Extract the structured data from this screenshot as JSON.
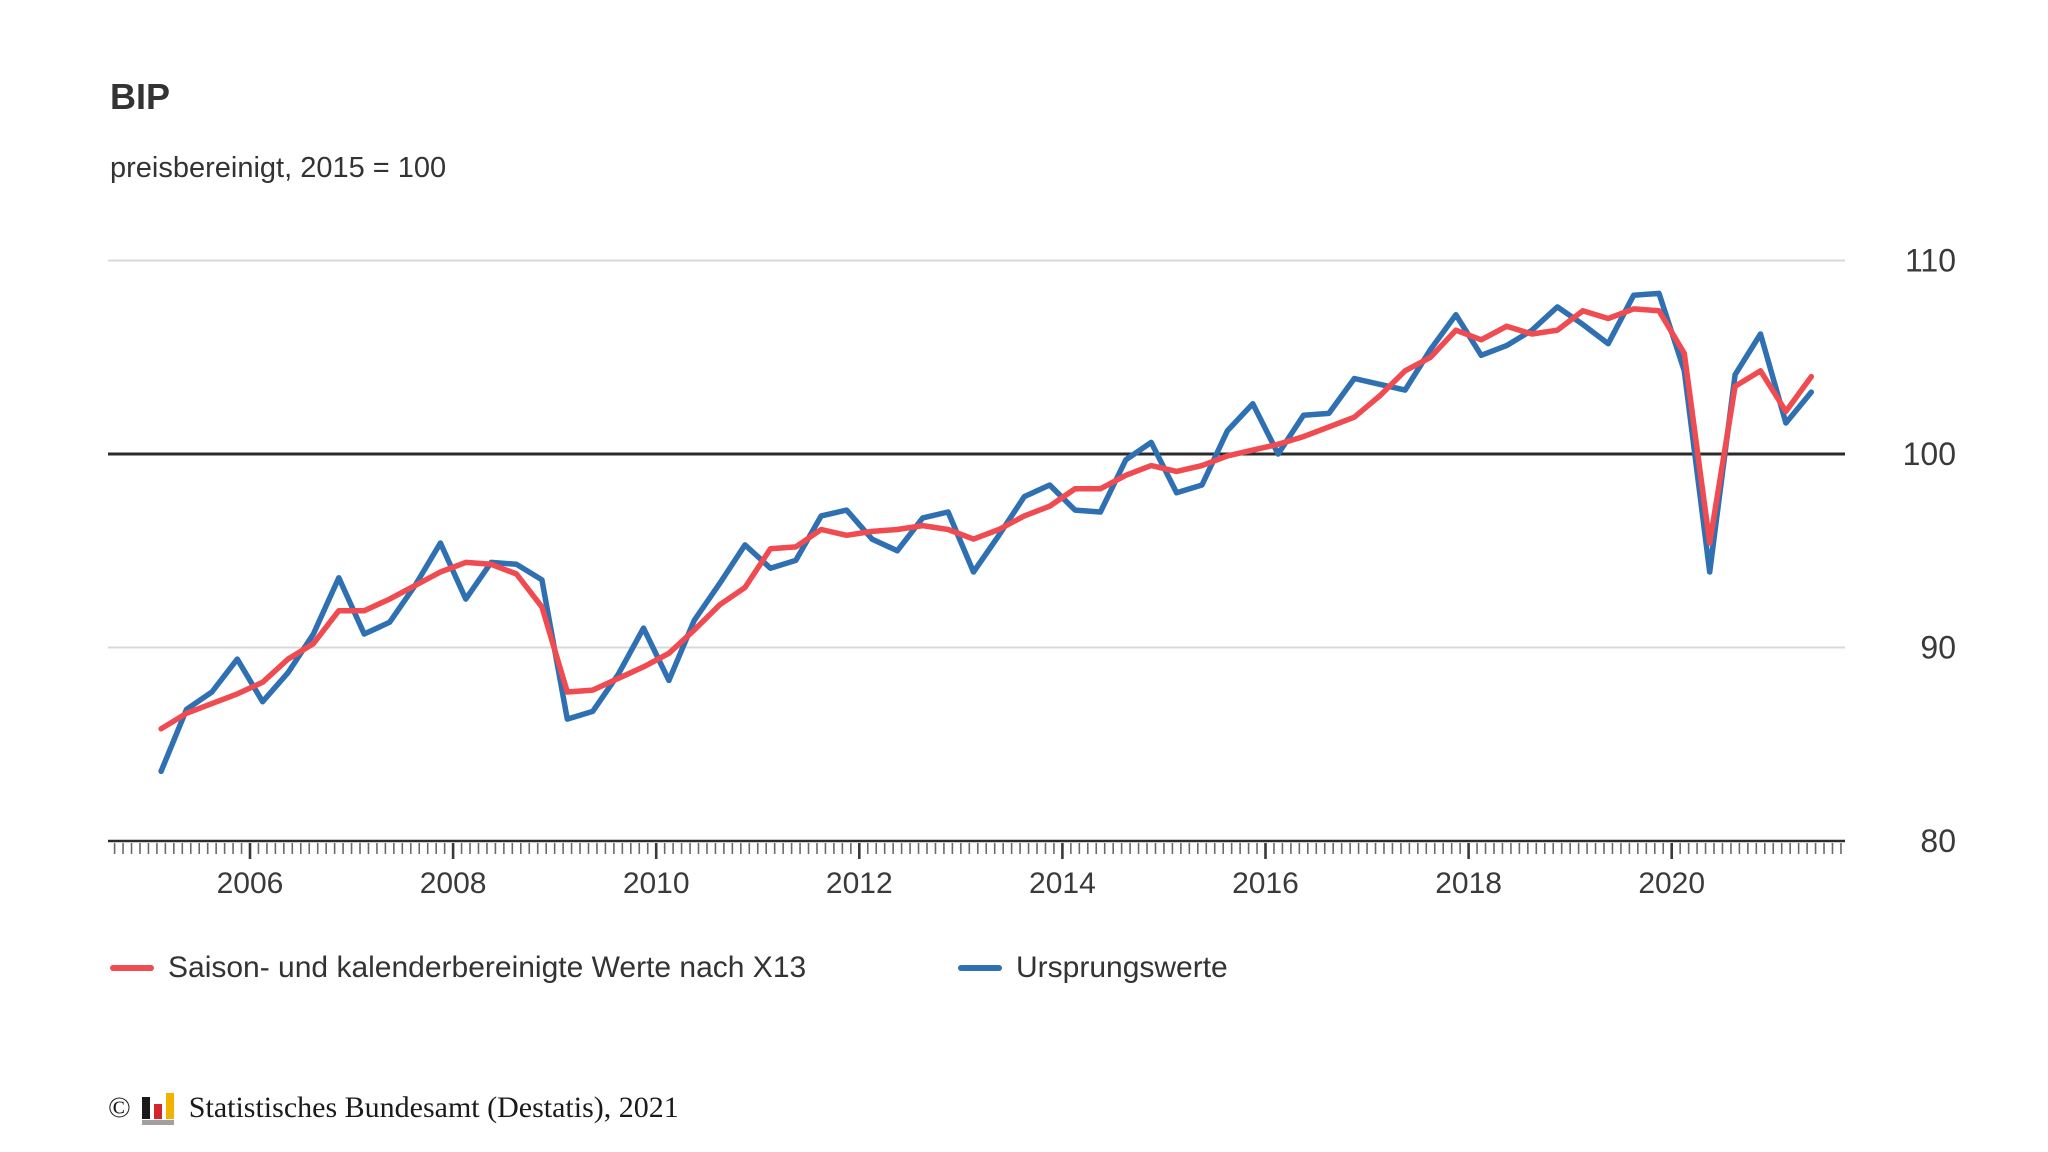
{
  "header": {
    "title": "BIP",
    "subtitle": "preisbereinigt, 2015 = 100"
  },
  "chart_data": {
    "type": "line",
    "title": "BIP",
    "subtitle": "preisbereinigt, 2015 = 100",
    "xlabel": "",
    "ylabel": "",
    "ylim": [
      80,
      110
    ],
    "y_ticks": [
      110,
      100,
      90,
      80
    ],
    "y_tick_labels": [
      "110",
      "100",
      "90",
      "80"
    ],
    "x_tick_years": [
      2006,
      2008,
      2010,
      2012,
      2014,
      2016,
      2018,
      2020
    ],
    "x_tick_labels": [
      "2006",
      "2008",
      "2010",
      "2012",
      "2014",
      "2016",
      "2018",
      "2020"
    ],
    "baseline_value": 100,
    "grid": "horizontal-gridlines-at-90-and-110, emphasized-line-at-100, monthly-minor-ticks-on-x-axis",
    "legend_position": "bottom-left",
    "quarters": [
      "2005 Q1",
      "2005 Q2",
      "2005 Q3",
      "2005 Q4",
      "2006 Q1",
      "2006 Q2",
      "2006 Q3",
      "2006 Q4",
      "2007 Q1",
      "2007 Q2",
      "2007 Q3",
      "2007 Q4",
      "2008 Q1",
      "2008 Q2",
      "2008 Q3",
      "2008 Q4",
      "2009 Q1",
      "2009 Q2",
      "2009 Q3",
      "2009 Q4",
      "2010 Q1",
      "2010 Q2",
      "2010 Q3",
      "2010 Q4",
      "2011 Q1",
      "2011 Q2",
      "2011 Q3",
      "2011 Q4",
      "2012 Q1",
      "2012 Q2",
      "2012 Q3",
      "2012 Q4",
      "2013 Q1",
      "2013 Q2",
      "2013 Q3",
      "2013 Q4",
      "2014 Q1",
      "2014 Q2",
      "2014 Q3",
      "2014 Q4",
      "2015 Q1",
      "2015 Q2",
      "2015 Q3",
      "2015 Q4",
      "2016 Q1",
      "2016 Q2",
      "2016 Q3",
      "2016 Q4",
      "2017 Q1",
      "2017 Q2",
      "2017 Q3",
      "2017 Q4",
      "2018 Q1",
      "2018 Q2",
      "2018 Q3",
      "2018 Q4",
      "2019 Q1",
      "2019 Q2",
      "2019 Q3",
      "2019 Q4",
      "2020 Q1",
      "2020 Q2",
      "2020 Q3",
      "2020 Q4",
      "2021 Q1",
      "2021 Q2"
    ],
    "series": [
      {
        "name": "Ursprungswerte",
        "color": "#2f70b2",
        "values": [
          83.6,
          86.8,
          87.7,
          89.4,
          87.2,
          88.7,
          90.7,
          93.6,
          90.7,
          91.3,
          93.2,
          95.4,
          92.5,
          94.4,
          94.3,
          93.5,
          86.3,
          86.7,
          88.6,
          91.0,
          88.3,
          91.4,
          93.3,
          95.3,
          94.1,
          94.5,
          96.8,
          97.1,
          95.6,
          95.0,
          96.7,
          97.0,
          93.9,
          95.8,
          97.8,
          98.4,
          97.1,
          97.0,
          99.7,
          100.6,
          98.0,
          98.4,
          101.2,
          102.6,
          100.0,
          102.0,
          102.1,
          103.9,
          103.6,
          103.3,
          105.4,
          107.2,
          105.1,
          105.6,
          106.4,
          107.6,
          106.7,
          105.7,
          108.2,
          108.3,
          104.3,
          93.9,
          104.1,
          106.2,
          101.6,
          103.2
        ]
      },
      {
        "name": "Saison- und kalenderbereinigte Werte nach X13",
        "color": "#f04b50",
        "values": [
          85.8,
          86.6,
          87.1,
          87.6,
          88.2,
          89.4,
          90.2,
          91.9,
          91.9,
          92.5,
          93.2,
          93.9,
          94.4,
          94.3,
          93.8,
          92.1,
          87.7,
          87.8,
          88.4,
          89.0,
          89.7,
          90.9,
          92.2,
          93.1,
          95.1,
          95.2,
          96.1,
          95.8,
          96.0,
          96.1,
          96.3,
          96.1,
          95.6,
          96.1,
          96.8,
          97.3,
          98.2,
          98.2,
          98.9,
          99.4,
          99.1,
          99.4,
          99.9,
          100.2,
          100.5,
          100.9,
          101.4,
          101.9,
          103.0,
          104.3,
          105.0,
          106.4,
          105.9,
          106.6,
          106.2,
          106.4,
          107.4,
          107.0,
          107.5,
          107.4,
          105.2,
          95.4,
          103.5,
          104.3,
          102.2,
          104.0
        ]
      }
    ]
  },
  "legend": {
    "items": [
      {
        "label": "Saison- und kalenderbereinigte Werte nach X13",
        "color": "#f04b50"
      },
      {
        "label": "Ursprungswerte",
        "color": "#2f70b2"
      }
    ]
  },
  "footer": {
    "copyright_symbol": "©",
    "text": "Statistisches Bundesamt (Destatis), 2021"
  },
  "colors": {
    "series_adjusted": "#f04b50",
    "series_original": "#2f70b2",
    "gridline": "#d8d8d8",
    "baseline": "#2b2b2b",
    "axis": "#2b2b2b",
    "tick": "#6b6b6b",
    "tick_major": "#3a3a3a",
    "axis_label": "#3a3a3a",
    "text": "#333333",
    "logo_black": "#1a1a1a",
    "logo_red": "#d2252e",
    "logo_gold": "#f0b400",
    "logo_base": "#a0a0a0",
    "background": "#ffffff"
  }
}
